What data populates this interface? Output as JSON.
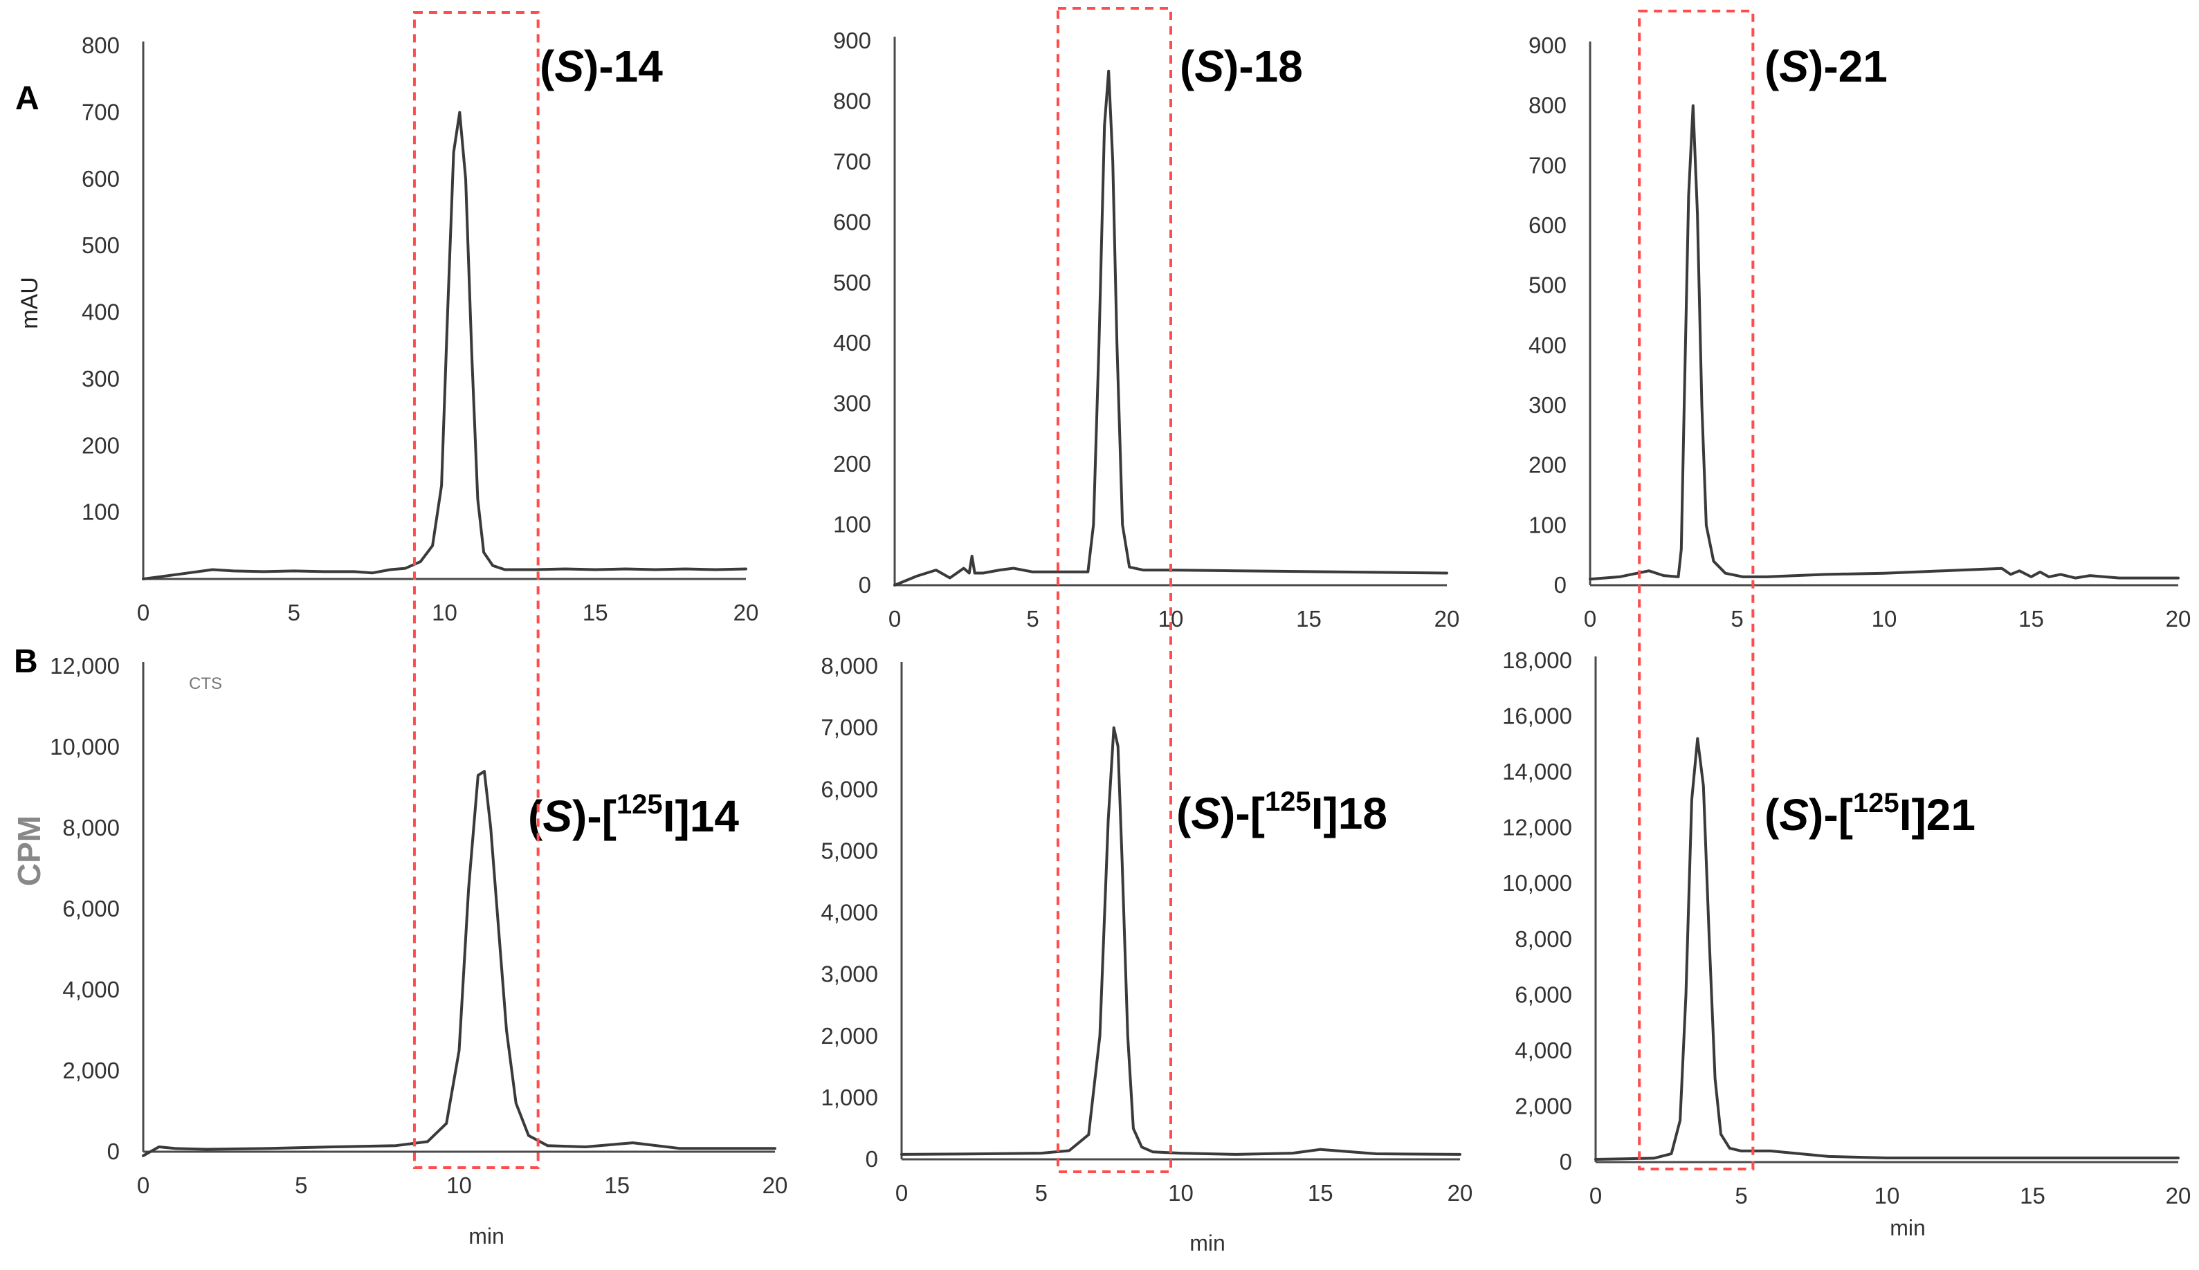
{
  "figure": {
    "row_labels": [
      "A",
      "B"
    ],
    "ylabel_row_a": "mAU",
    "ylabel_row_b": "CPM",
    "cts_label": "CTS",
    "xlabel": "min",
    "highlight_color": "#ff4d4d",
    "trace_color": "#3a3a3a"
  },
  "chart_data": [
    {
      "id": "a1",
      "type": "line",
      "row": "A",
      "compound": {
        "prefix": "(",
        "italic": "S",
        "suffix": ")-14"
      },
      "xlim": [
        0,
        20
      ],
      "ylim": [
        0,
        800
      ],
      "xticks": [
        0,
        5,
        10,
        15,
        20
      ],
      "yticks": [
        100,
        200,
        300,
        400,
        500,
        600,
        700,
        800
      ],
      "highlight_window": [
        9.0,
        12.5
      ],
      "series": [
        {
          "x": [
            0,
            1,
            2.3,
            3,
            4,
            5,
            6,
            7,
            7.6,
            8.2,
            8.7,
            9.2,
            9.6,
            9.9,
            10.1,
            10.3,
            10.5,
            10.7,
            10.9,
            11.1,
            11.3,
            11.6,
            12,
            13,
            14,
            15,
            16,
            17,
            18,
            19,
            20
          ],
          "y": [
            0,
            6,
            14,
            12,
            11,
            12,
            11,
            11,
            9,
            14,
            16,
            26,
            50,
            140,
            400,
            640,
            700,
            600,
            340,
            120,
            40,
            20,
            14,
            14,
            15,
            14,
            15,
            14,
            15,
            14,
            15
          ]
        }
      ]
    },
    {
      "id": "a2",
      "type": "line",
      "row": "A",
      "compound": {
        "prefix": "(",
        "italic": "S",
        "suffix": ")-18"
      },
      "xlim": [
        0,
        20
      ],
      "ylim": [
        0,
        900
      ],
      "xticks": [
        0,
        5,
        10,
        15,
        20
      ],
      "yticks": [
        0,
        100,
        200,
        300,
        400,
        500,
        600,
        700,
        800,
        900
      ],
      "highlight_window": [
        6.0,
        10.0
      ],
      "series": [
        {
          "x": [
            0,
            0.8,
            1.5,
            2,
            2.5,
            2.7,
            2.8,
            2.9,
            3.2,
            3.8,
            4.3,
            5,
            6,
            7,
            7.2,
            7.4,
            7.6,
            7.75,
            7.9,
            8.05,
            8.25,
            8.5,
            9,
            10,
            12,
            14,
            16,
            18,
            20
          ],
          "y": [
            0,
            15,
            25,
            12,
            28,
            20,
            48,
            20,
            20,
            25,
            28,
            22,
            22,
            22,
            100,
            400,
            760,
            850,
            700,
            400,
            100,
            30,
            25,
            25,
            24,
            23,
            22,
            21,
            20
          ]
        }
      ]
    },
    {
      "id": "a3",
      "type": "line",
      "row": "A",
      "compound": {
        "prefix": "(",
        "italic": "S",
        "suffix": ")-21"
      },
      "xlim": [
        0,
        20
      ],
      "ylim": [
        0,
        900
      ],
      "xticks": [
        0,
        5,
        10,
        15,
        20
      ],
      "yticks": [
        0,
        100,
        200,
        300,
        400,
        500,
        600,
        700,
        800,
        900
      ],
      "highlight_window": [
        1.7,
        5.4
      ],
      "series": [
        {
          "x": [
            0,
            1,
            2,
            2.5,
            3,
            3.1,
            3.2,
            3.35,
            3.5,
            3.65,
            3.8,
            3.95,
            4.2,
            4.6,
            5.2,
            6,
            8,
            10,
            12,
            14,
            14.3,
            14.6,
            15,
            15.3,
            15.6,
            16,
            16.5,
            17,
            18,
            19,
            20
          ],
          "y": [
            10,
            14,
            24,
            16,
            14,
            60,
            300,
            650,
            800,
            620,
            300,
            100,
            40,
            20,
            14,
            14,
            18,
            20,
            24,
            28,
            18,
            24,
            14,
            22,
            14,
            18,
            12,
            16,
            12,
            12,
            12
          ]
        }
      ]
    },
    {
      "id": "b1",
      "type": "line",
      "row": "B",
      "compound": {
        "prefix": "(",
        "italic": "S",
        "mid": ")-[",
        "sup": "125",
        "suffix": "I]14"
      },
      "xlim": [
        0,
        20
      ],
      "ylim": [
        0,
        12000
      ],
      "xticks": [
        0,
        5,
        10,
        15,
        20
      ],
      "yticks": [
        0,
        2000,
        4000,
        6000,
        8000,
        10000,
        12000
      ],
      "ytick_labels": [
        "0",
        "2,000",
        "4,000",
        "6,000",
        "8,000",
        "10,000",
        "12,000"
      ],
      "highlight_window": [
        9.0,
        12.5
      ],
      "series": [
        {
          "x": [
            0,
            0.5,
            1,
            2,
            4,
            6,
            8,
            9,
            9.6,
            10,
            10.3,
            10.6,
            10.8,
            11,
            11.2,
            11.5,
            11.8,
            12.2,
            12.8,
            14,
            15.5,
            17,
            20
          ],
          "y": [
            -100,
            120,
            80,
            60,
            80,
            120,
            150,
            250,
            700,
            2500,
            6500,
            9300,
            9400,
            8000,
            6000,
            3000,
            1200,
            400,
            150,
            120,
            220,
            80,
            80
          ]
        }
      ]
    },
    {
      "id": "b2",
      "type": "line",
      "row": "B",
      "compound": {
        "prefix": "(",
        "italic": "S",
        "mid": ")-[",
        "sup": "125",
        "suffix": "I]18"
      },
      "xlim": [
        0,
        20
      ],
      "ylim": [
        0,
        8000
      ],
      "xticks": [
        0,
        5,
        10,
        15,
        20
      ],
      "yticks": [
        0,
        1000,
        2000,
        3000,
        4000,
        5000,
        6000,
        7000,
        8000
      ],
      "ytick_labels": [
        "0",
        "1,000",
        "2,000",
        "3,000",
        "4,000",
        "5,000",
        "6,000",
        "7,000",
        "8,000"
      ],
      "highlight_window": [
        5.6,
        9.6
      ],
      "series": [
        {
          "x": [
            0,
            3,
            5,
            6,
            6.7,
            7.1,
            7.4,
            7.6,
            7.75,
            7.9,
            8.1,
            8.3,
            8.6,
            9,
            10,
            12,
            14,
            15,
            17,
            20
          ],
          "y": [
            80,
            90,
            100,
            140,
            400,
            2000,
            5500,
            7000,
            6700,
            4800,
            2000,
            500,
            200,
            120,
            100,
            80,
            100,
            160,
            90,
            80
          ]
        }
      ]
    },
    {
      "id": "b3",
      "type": "line",
      "row": "B",
      "compound": {
        "prefix": "(",
        "italic": "S",
        "mid": ")-[",
        "sup": "125",
        "suffix": "I]21"
      },
      "xlim": [
        0,
        20
      ],
      "ylim": [
        0,
        18000
      ],
      "xticks": [
        0,
        5,
        10,
        15,
        20
      ],
      "yticks": [
        0,
        2000,
        4000,
        6000,
        8000,
        10000,
        12000,
        14000,
        16000,
        18000
      ],
      "ytick_labels": [
        "0",
        "2,000",
        "4,000",
        "6,000",
        "8,000",
        "10,000",
        "12,000",
        "14,000",
        "16,000",
        "18,000"
      ],
      "highlight_window": [
        1.5,
        5.4
      ],
      "series": [
        {
          "x": [
            0,
            1,
            2,
            2.6,
            2.9,
            3.1,
            3.3,
            3.5,
            3.7,
            3.9,
            4.1,
            4.3,
            4.6,
            5,
            6,
            7,
            8,
            10,
            15,
            20
          ],
          "y": [
            100,
            120,
            140,
            300,
            1500,
            6000,
            13000,
            15200,
            13500,
            8000,
            3000,
            1000,
            500,
            400,
            400,
            300,
            200,
            150,
            150,
            150
          ]
        }
      ]
    }
  ]
}
